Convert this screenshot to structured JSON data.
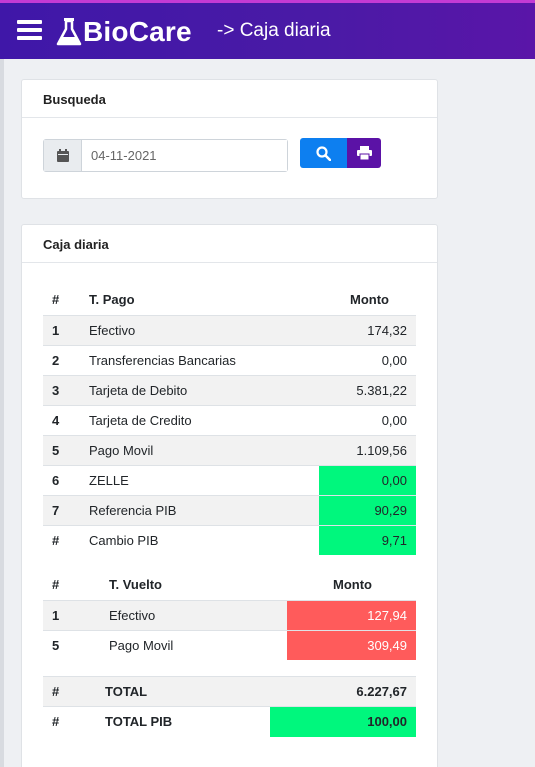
{
  "header": {
    "logo_text": "BioCare",
    "breadcrumb": "-> Caja diaria"
  },
  "search": {
    "title": "Busqueda",
    "date_value": "04-11-2021",
    "icons": {
      "calendar": "calendar-icon",
      "search": "search-icon",
      "print": "print-icon"
    }
  },
  "caja": {
    "title": "Caja diaria",
    "payments": {
      "headers": [
        "#",
        "T. Pago",
        "Monto"
      ],
      "rows": [
        {
          "num": "1",
          "label": "Efectivo",
          "amount": "174,32"
        },
        {
          "num": "2",
          "label": "Transferencias Bancarias",
          "amount": "0,00"
        },
        {
          "num": "3",
          "label": "Tarjeta de Debito",
          "amount": "5.381,22"
        },
        {
          "num": "4",
          "label": "Tarjeta de Credito",
          "amount": "0,00"
        },
        {
          "num": "5",
          "label": "Pago Movil",
          "amount": "1.109,56"
        },
        {
          "num": "6",
          "label": "ZELLE",
          "amount": "0,00"
        },
        {
          "num": "7",
          "label": "Referencia PIB",
          "amount": "90,29"
        },
        {
          "num": "#",
          "label": "Cambio PIB",
          "amount": "9,71"
        }
      ]
    },
    "change": {
      "headers": [
        "#",
        "T. Vuelto",
        "Monto"
      ],
      "rows": [
        {
          "num": "1",
          "label": "Efectivo",
          "amount": "127,94"
        },
        {
          "num": "5",
          "label": "Pago Movil",
          "amount": "309,49"
        }
      ]
    },
    "totals": {
      "rows": [
        {
          "num": "#",
          "label": "TOTAL",
          "amount": "6.227,67"
        },
        {
          "num": "#",
          "label": "TOTAL PIB",
          "amount": "100,00"
        }
      ]
    }
  },
  "colors": {
    "green": "#00f77d",
    "red": "#ff5b5b",
    "brand": "#4a1aa6"
  }
}
